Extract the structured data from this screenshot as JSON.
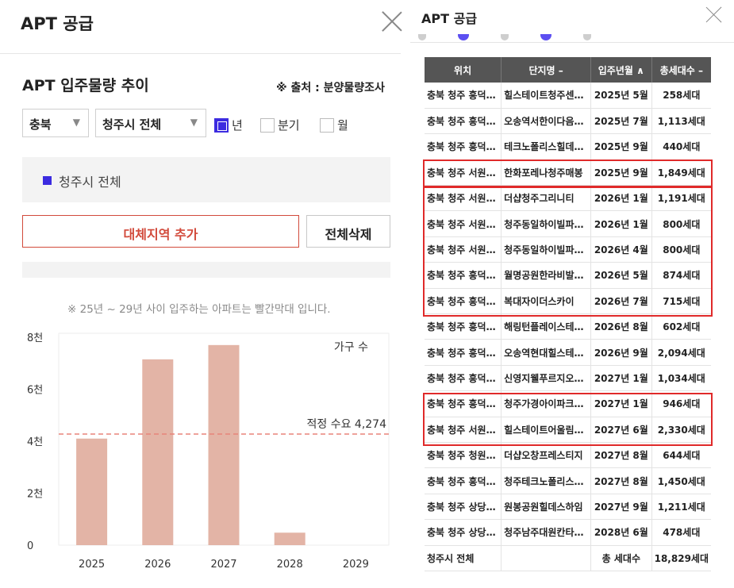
{
  "left": {
    "title": "APT 공급",
    "section_title": "APT 입주물량 추이",
    "source": "※ 출처 : 분양물량조사",
    "region_select": "충북",
    "city_select": "청주시 전체",
    "period_options": [
      {
        "label": "년",
        "checked": true
      },
      {
        "label": "분기",
        "checked": false
      },
      {
        "label": "월",
        "checked": false
      }
    ],
    "selected_region": "청주시 전체",
    "add_button": "대체지역 추가",
    "delete_button": "전체삭제",
    "note": "※ 25년 ~ 29년 사이 입주하는 아파트는 빨간막대 입니다.",
    "accent_color": "#3c2be0",
    "alert_color": "#d24a3b"
  },
  "chart_data": {
    "type": "bar",
    "categories": [
      "2025",
      "2026",
      "2027",
      "2028",
      "2029"
    ],
    "values": [
      4100,
      7150,
      7700,
      480,
      0
    ],
    "series_label": "가구 수",
    "ylim": [
      0,
      8000
    ],
    "yticks": [
      {
        "value": 0,
        "label": "0"
      },
      {
        "value": 2000,
        "label": "2천"
      },
      {
        "value": 4000,
        "label": "4천"
      },
      {
        "value": 6000,
        "label": "6천"
      },
      {
        "value": 8000,
        "label": "8천"
      }
    ],
    "reference_line": {
      "value": 4274,
      "label": "적정 수요 4,274"
    },
    "bar_color": "#e3b4a6",
    "reference_color": "#e8837a",
    "grid": false
  },
  "right": {
    "title": "APT 공급",
    "headers": [
      "위치",
      "단지명 –",
      "입주년월 ∧",
      "총세대수 –"
    ],
    "rows": [
      [
        "충북 청주 흥덕…",
        "힐스테이트청주센…",
        "2025년 5월",
        "258세대"
      ],
      [
        "충북 청주 흥덕…",
        "오송역서한이다음…",
        "2025년 7월",
        "1,113세대"
      ],
      [
        "충북 청주 흥덕…",
        "테크노폴리스힐데…",
        "2025년 9월",
        "440세대"
      ],
      [
        "충북 청주 서원…",
        "한화포레나청주매봉",
        "2025년 9월",
        "1,849세대"
      ],
      [
        "충북 청주 서원…",
        "더샵청주그리니티",
        "2026년 1월",
        "1,191세대"
      ],
      [
        "충북 청주 서원…",
        "청주동일하이빌파…",
        "2026년 1월",
        "800세대"
      ],
      [
        "충북 청주 서원…",
        "청주동일하이빌파…",
        "2026년 4월",
        "800세대"
      ],
      [
        "충북 청주 흥덕…",
        "월명공원한라비발…",
        "2026년 5월",
        "874세대"
      ],
      [
        "충북 청주 흥덕…",
        "복대자이더스카이",
        "2026년 7월",
        "715세대"
      ],
      [
        "충북 청주 흥덕…",
        "해링턴플레이스테…",
        "2026년 8월",
        "602세대"
      ],
      [
        "충북 청주 흥덕…",
        "오송역현대힐스테…",
        "2026년 9월",
        "2,094세대"
      ],
      [
        "충북 청주 흥덕…",
        "신영지웰푸르지오…",
        "2027년 1월",
        "1,034세대"
      ],
      [
        "충북 청주 흥덕…",
        "청주가경아이파크…",
        "2027년 1월",
        "946세대"
      ],
      [
        "충북 청주 서원…",
        "힐스테이트어울림…",
        "2027년 6월",
        "2,330세대"
      ],
      [
        "충북 청주 청원…",
        "더샵오창프레스티지",
        "2027년 8월",
        "644세대"
      ],
      [
        "충북 청주 흥덕…",
        "청주테크노폴리스…",
        "2027년 8월",
        "1,450세대"
      ],
      [
        "충북 청주 상당…",
        "원봉공원힐데스하임",
        "2027년 9월",
        "1,211세대"
      ],
      [
        "충북 청주 상당…",
        "청주남주대원칸타…",
        "2028년 6월",
        "478세대"
      ]
    ],
    "total": [
      "청주시 전체",
      "",
      "총 세대수",
      "18,829세대"
    ],
    "highlight_color": "#e02a2a"
  }
}
